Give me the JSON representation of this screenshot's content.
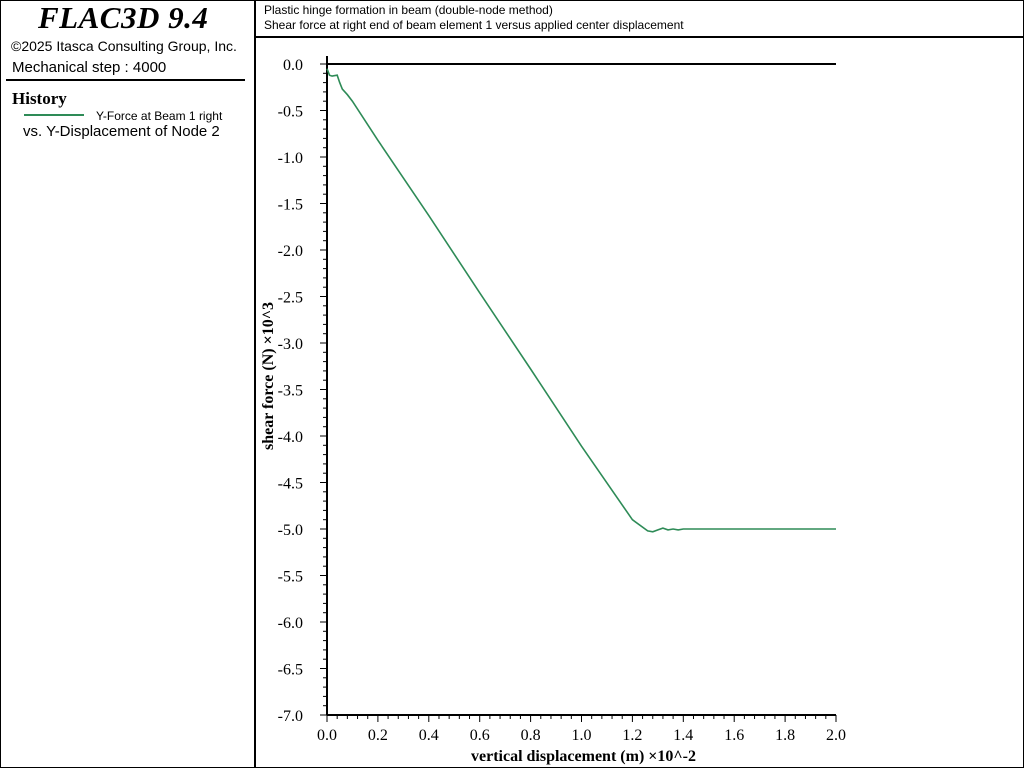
{
  "app": {
    "title": "FLAC3D 9.4",
    "copyright": "©2025 Itasca Consulting Group, Inc.",
    "step": "Mechanical step : 4000"
  },
  "history": {
    "heading": "History",
    "legend_label": "Y-Force at Beam 1 right",
    "legend_vs": "vs. Y-Displacement of Node 2",
    "line_color": "#2e8b57"
  },
  "chart_data": {
    "type": "line",
    "title": "Plastic hinge formation in beam (double-node method)",
    "subtitle": "Shear force at right end of beam element 1 versus applied center displacement",
    "xlabel": "vertical displacement (m) ×10^-2",
    "ylabel": "shear force (N) ×10^3",
    "xlim": [
      0.0,
      2.0
    ],
    "ylim": [
      -7.0,
      0.0
    ],
    "xticks": [
      "0.0",
      "0.2",
      "0.4",
      "0.6",
      "0.8",
      "1.0",
      "1.2",
      "1.4",
      "1.6",
      "1.8",
      "2.0"
    ],
    "yticks": [
      "0.0",
      "-0.5",
      "-1.0",
      "-1.5",
      "-2.0",
      "-2.5",
      "-3.0",
      "-3.5",
      "-4.0",
      "-4.5",
      "-5.0",
      "-5.5",
      "-6.0",
      "-6.5",
      "-7.0"
    ],
    "grid": false,
    "series": [
      {
        "name": "Y-Force at Beam 1 right",
        "color": "#2e8b57",
        "x": [
          0.0,
          0.01,
          0.02,
          0.04,
          0.05,
          0.06,
          0.08,
          0.1,
          0.2,
          0.4,
          0.6,
          0.8,
          1.0,
          1.2,
          1.26,
          1.28,
          1.3,
          1.32,
          1.34,
          1.36,
          1.38,
          1.4,
          1.6,
          1.8,
          2.0
        ],
        "y": [
          -0.05,
          -0.12,
          -0.13,
          -0.12,
          -0.2,
          -0.27,
          -0.33,
          -0.4,
          -0.82,
          -1.63,
          -2.46,
          -3.28,
          -4.11,
          -4.9,
          -5.02,
          -5.03,
          -5.01,
          -4.99,
          -5.01,
          -5.0,
          -5.01,
          -5.0,
          -5.0,
          -5.0,
          -5.0
        ]
      },
      {
        "name": "",
        "color": "#000000",
        "x": [
          0.0,
          2.0
        ],
        "y": [
          0.0,
          0.0
        ]
      }
    ]
  }
}
